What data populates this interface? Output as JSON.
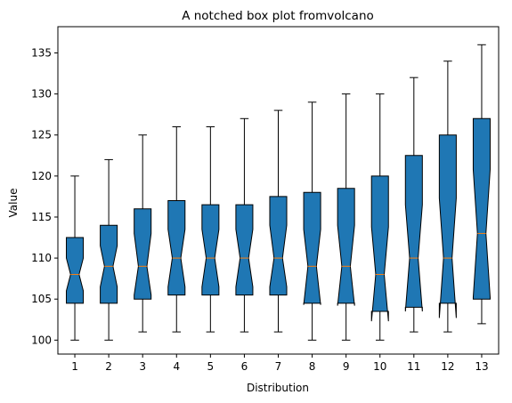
{
  "chart_data": {
    "type": "boxplot",
    "title": "A notched box plot fromvolcano",
    "xlabel": "Distribution",
    "ylabel": "Value",
    "ylim": [
      98.3,
      138.2
    ],
    "yticks": [
      100,
      105,
      110,
      115,
      120,
      125,
      130,
      135
    ],
    "grid": false,
    "notched": true,
    "box_color": "#1f77b4",
    "median_color": "#ff7f0e",
    "categories": [
      "1",
      "2",
      "3",
      "4",
      "5",
      "6",
      "7",
      "8",
      "9",
      "10",
      "11",
      "12",
      "13"
    ],
    "boxes": [
      {
        "whislo": 100,
        "q1": 104.5,
        "med": 108,
        "q3": 112.5,
        "whishi": 120,
        "notch_lo": 106,
        "notch_hi": 110
      },
      {
        "whislo": 100,
        "q1": 104.5,
        "med": 109,
        "q3": 114,
        "whishi": 122,
        "notch_lo": 106.5,
        "notch_hi": 111.5
      },
      {
        "whislo": 101,
        "q1": 105,
        "med": 109,
        "q3": 116,
        "whishi": 125,
        "notch_lo": 105.5,
        "notch_hi": 113
      },
      {
        "whislo": 101,
        "q1": 105.5,
        "med": 110,
        "q3": 117,
        "whishi": 126,
        "notch_lo": 106.5,
        "notch_hi": 113.5
      },
      {
        "whislo": 101,
        "q1": 105.5,
        "med": 110,
        "q3": 116.5,
        "whishi": 126,
        "notch_lo": 106.5,
        "notch_hi": 113.5
      },
      {
        "whislo": 101,
        "q1": 105.5,
        "med": 110,
        "q3": 116.5,
        "whishi": 127,
        "notch_lo": 106.5,
        "notch_hi": 113.5
      },
      {
        "whislo": 101,
        "q1": 105.5,
        "med": 110,
        "q3": 117.5,
        "whishi": 128,
        "notch_lo": 106.5,
        "notch_hi": 114
      },
      {
        "whislo": 100,
        "q1": 104.5,
        "med": 109,
        "q3": 118,
        "whishi": 129,
        "notch_lo": 104.3,
        "notch_hi": 113.5
      },
      {
        "whislo": 100,
        "q1": 104.5,
        "med": 109,
        "q3": 118.5,
        "whishi": 130,
        "notch_lo": 104.2,
        "notch_hi": 114
      },
      {
        "whislo": 100,
        "q1": 103.5,
        "med": 108,
        "q3": 120,
        "whishi": 130,
        "notch_lo": 102.3,
        "notch_hi": 113.8
      },
      {
        "whislo": 101,
        "q1": 104,
        "med": 110,
        "q3": 122.5,
        "whishi": 132,
        "notch_lo": 103.5,
        "notch_hi": 116.5
      },
      {
        "whislo": 101,
        "q1": 104.5,
        "med": 110,
        "q3": 125,
        "whishi": 134,
        "notch_lo": 102.7,
        "notch_hi": 117.3
      },
      {
        "whislo": 102,
        "q1": 105,
        "med": 113,
        "q3": 127,
        "whishi": 136,
        "notch_lo": 105.2,
        "notch_hi": 120.8
      }
    ]
  }
}
